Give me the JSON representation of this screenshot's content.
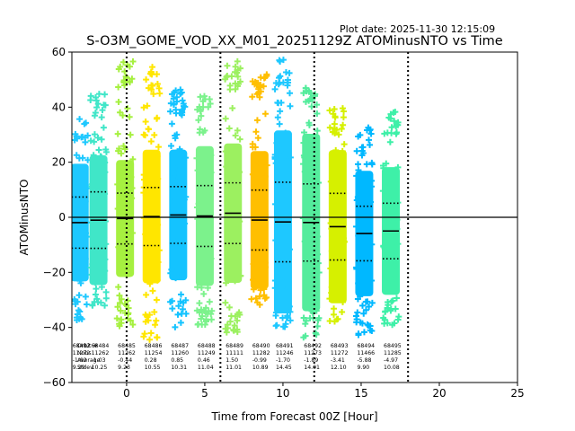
{
  "chart_data": {
    "type": "scatter",
    "title": "S-O3M_GOME_VOD_XX_M01_20251129Z ATOMinusNTO vs Time",
    "plot_date": "Plot date: 2025-11-30 12:15:09",
    "xlabel": "Time from Forecast 00Z [Hour]",
    "ylabel": "ATOMinusNTO",
    "xlim": [
      -3.5,
      25
    ],
    "ylim": [
      -60,
      60
    ],
    "xticks": [
      0,
      5,
      10,
      15,
      20,
      25
    ],
    "yticks": [
      -60,
      -40,
      -20,
      0,
      20,
      40,
      60
    ],
    "vlines": [
      0,
      6,
      12,
      18
    ],
    "hline": 0,
    "overlap_labels": [
      "Orbit #",
      "Nobs",
      "Average",
      "Stdev"
    ],
    "bins": [
      {
        "x": -3.0,
        "orbit": "68482",
        "nobs": "11272",
        "mean": "-1.92",
        "stdev": "9.29",
        "lo": -38,
        "hi": 36,
        "color": "#1ec8ff"
      },
      {
        "x": -1.8,
        "orbit": "68484",
        "nobs": "11262",
        "mean": "-1.03",
        "stdev": "10.25",
        "lo": -33,
        "hi": 46,
        "color": "#40e6c8"
      },
      {
        "x": -0.1,
        "orbit": "68485",
        "nobs": "11262",
        "mean": "-0.44",
        "stdev": "9.23",
        "lo": -40,
        "hi": 57,
        "color": "#a6f040"
      },
      {
        "x": 1.6,
        "orbit": "68486",
        "nobs": "11254",
        "mean": "0.28",
        "stdev": "10.55",
        "lo": -45,
        "hi": 56,
        "color": "#ffe600"
      },
      {
        "x": 3.3,
        "orbit": "68487",
        "nobs": "11260",
        "mean": "0.85",
        "stdev": "10.31",
        "lo": -40,
        "hi": 48,
        "color": "#14c3ff"
      },
      {
        "x": 5.0,
        "orbit": "68488",
        "nobs": "11249",
        "mean": "0.46",
        "stdev": "11.04",
        "lo": -40,
        "hi": 44,
        "color": "#7cf28c"
      },
      {
        "x": 6.8,
        "orbit": "68489",
        "nobs": "11111",
        "mean": "1.50",
        "stdev": "11.01",
        "lo": -42,
        "hi": 57,
        "color": "#9cf060"
      },
      {
        "x": 8.5,
        "orbit": "68490",
        "nobs": "11282",
        "mean": "-0.99",
        "stdev": "10.89",
        "lo": -32,
        "hi": 54,
        "color": "#ffbf00"
      },
      {
        "x": 10.0,
        "orbit": "68491",
        "nobs": "11246",
        "mean": "-1.70",
        "stdev": "14.45",
        "lo": -40,
        "hi": 58,
        "color": "#1ec8ff"
      },
      {
        "x": 11.8,
        "orbit": "68492",
        "nobs": "11273",
        "mean": "-1.89",
        "stdev": "14.01",
        "lo": -45,
        "hi": 47,
        "color": "#54ec9c"
      },
      {
        "x": 13.5,
        "orbit": "68493",
        "nobs": "11272",
        "mean": "-3.41",
        "stdev": "12.10",
        "lo": -38,
        "hi": 40,
        "color": "#d6f000"
      },
      {
        "x": 15.2,
        "orbit": "68494",
        "nobs": "11466",
        "mean": "-5.88",
        "stdev": "9.90",
        "lo": -44,
        "hi": 33,
        "color": "#00b8ff"
      },
      {
        "x": 16.9,
        "orbit": "68495",
        "nobs": "11285",
        "mean": "-4.97",
        "stdev": "10.08",
        "lo": -40,
        "hi": 40,
        "color": "#3ef0a8"
      }
    ]
  }
}
